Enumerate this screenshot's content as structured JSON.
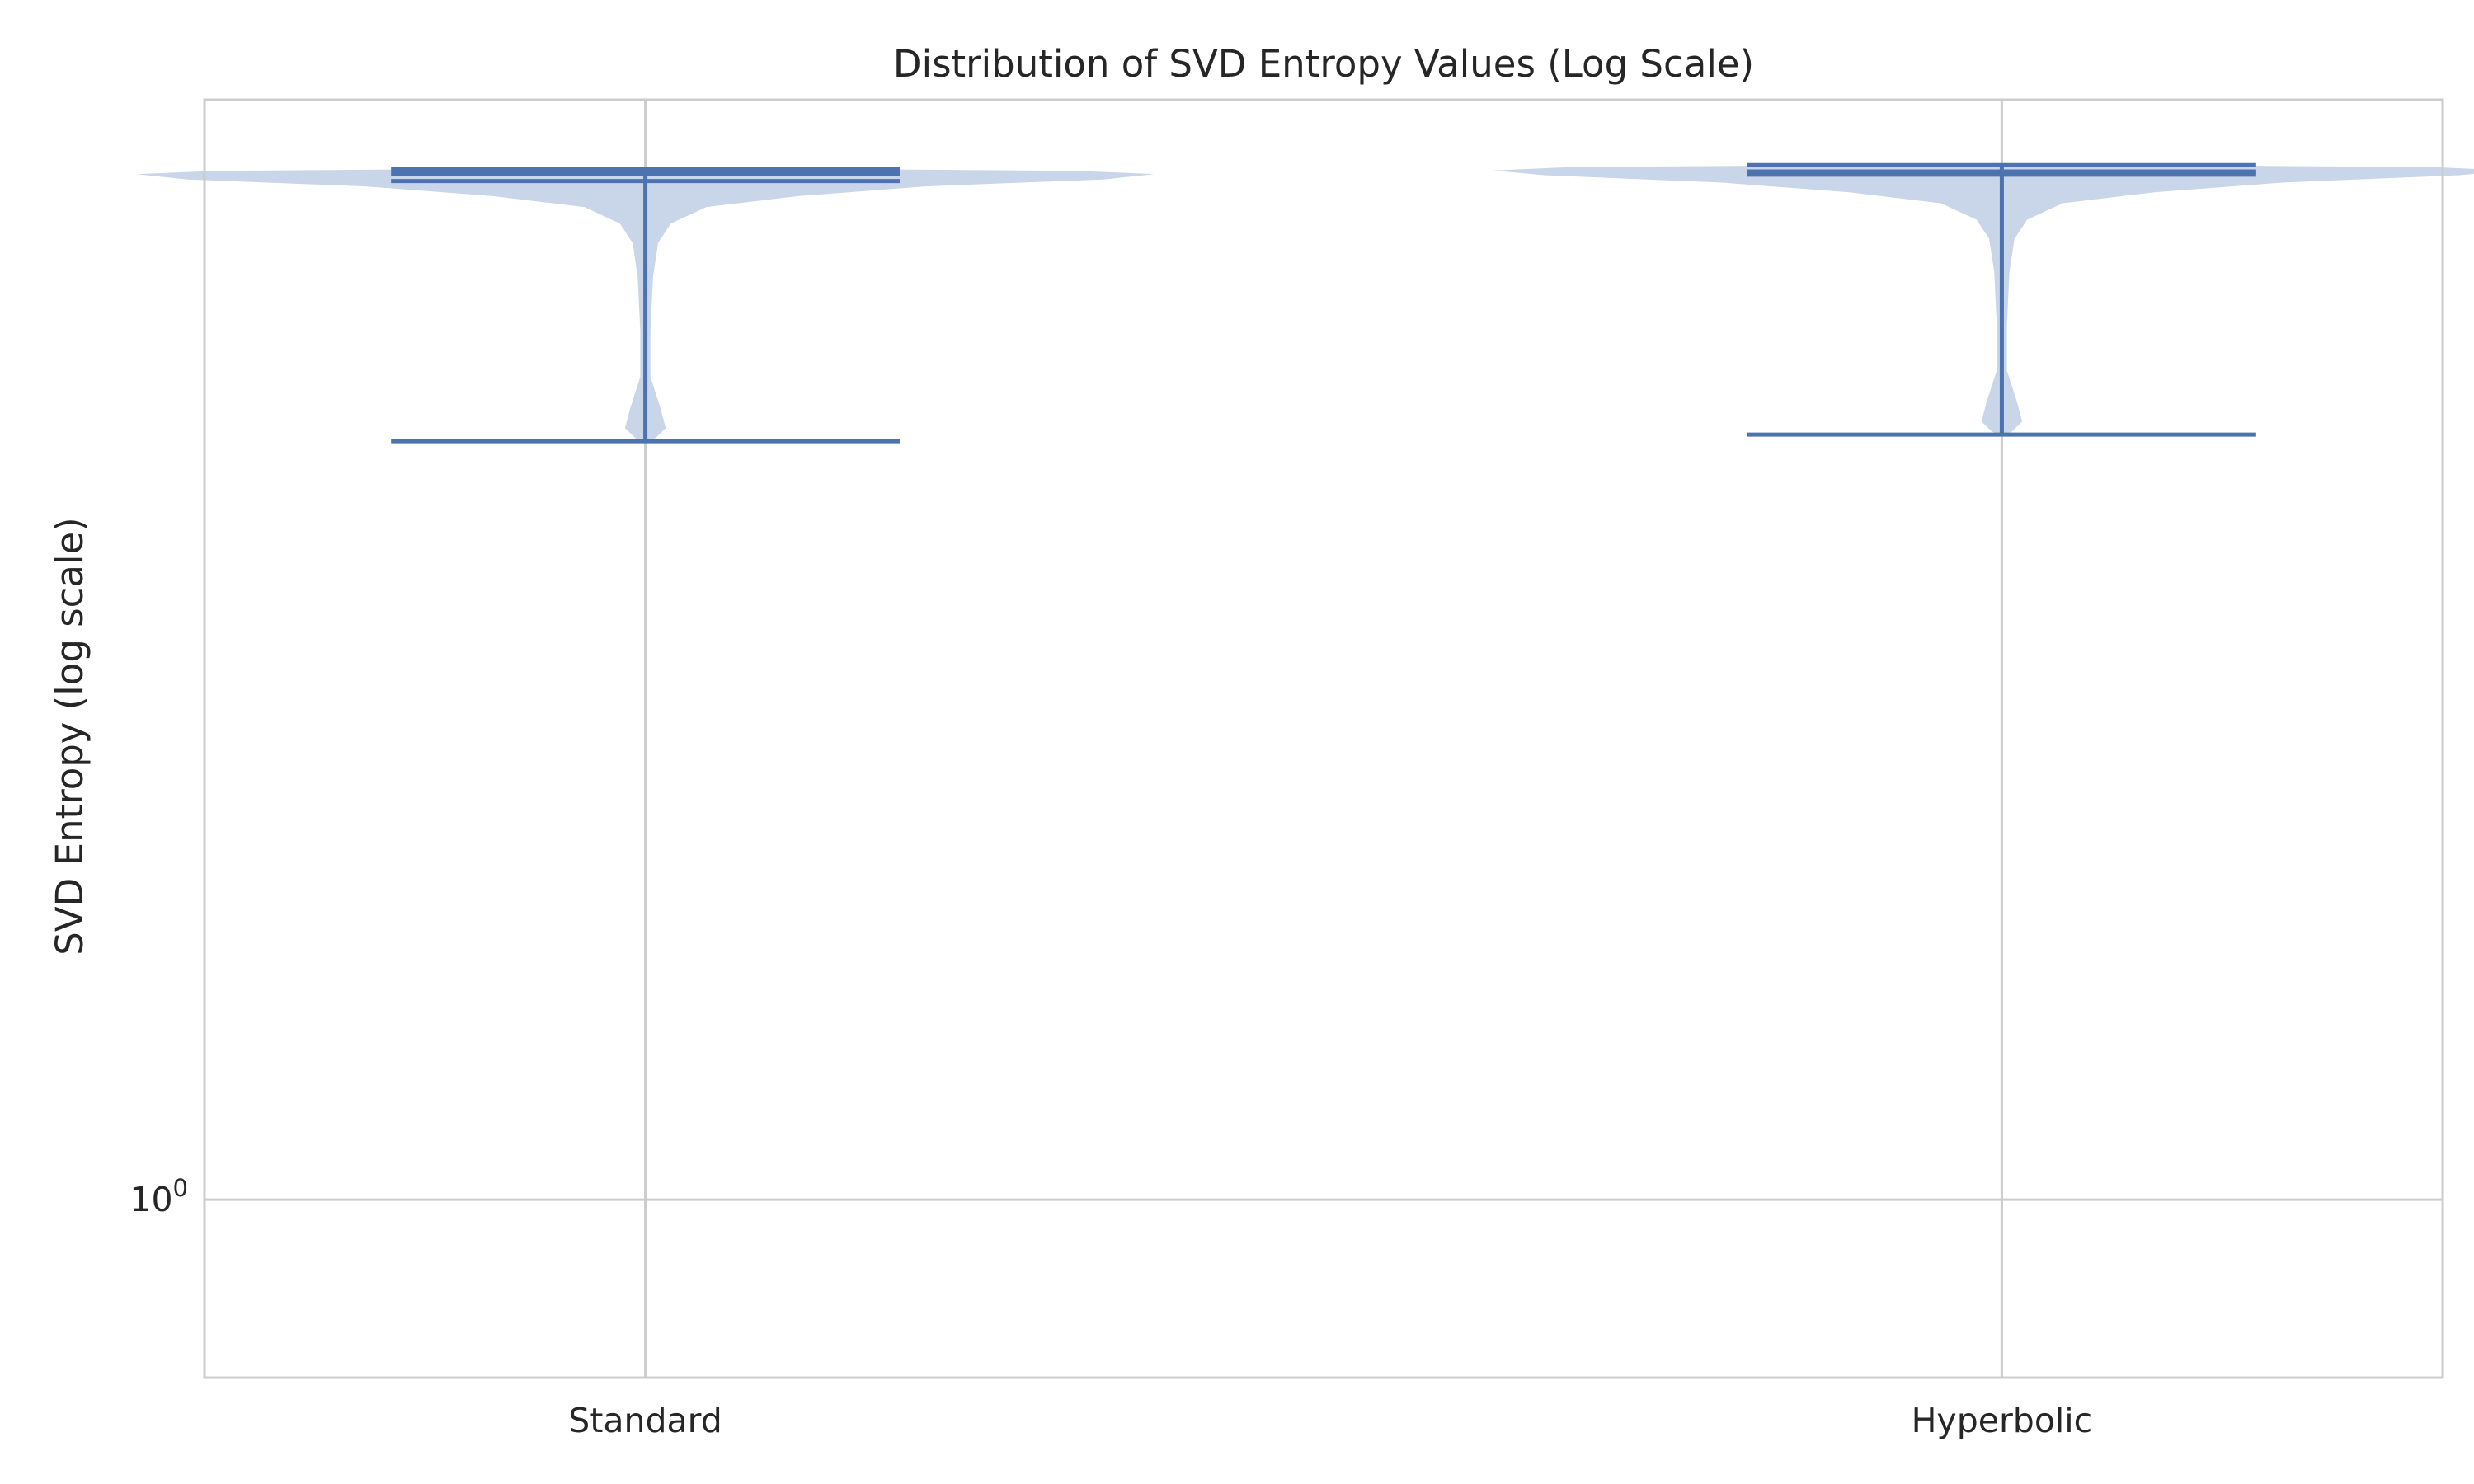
{
  "chart_data": {
    "type": "violin",
    "title": "Distribution of SVD Entropy Values (Log Scale)",
    "xlabel": "",
    "ylabel": "SVD Entropy (log scale)",
    "yscale": "log",
    "ylim": [
      0.865,
      2.45
    ],
    "yticks": [
      {
        "value": 1,
        "base": "10",
        "exponent": "0"
      }
    ],
    "categories": [
      "Standard",
      "Hyperbolic"
    ],
    "grid": true,
    "colors": {
      "body": "#c9d5e8",
      "lines": "#4c72b0",
      "grid": "#cccccc",
      "frame": "#cccccc",
      "text": "#262626"
    },
    "violins": [
      {
        "category": "Standard",
        "min": 1.855,
        "max": 2.316,
        "mean": 2.307,
        "median": 2.293,
        "density": [
          [
            2.316,
            0.3
          ],
          [
            2.312,
            0.85
          ],
          [
            2.306,
            1.0
          ],
          [
            2.296,
            0.9
          ],
          [
            2.283,
            0.55
          ],
          [
            2.265,
            0.3
          ],
          [
            2.245,
            0.12
          ],
          [
            2.215,
            0.05
          ],
          [
            2.18,
            0.025
          ],
          [
            2.12,
            0.015
          ],
          [
            2.03,
            0.01
          ],
          [
            1.955,
            0.01
          ],
          [
            1.905,
            0.03
          ],
          [
            1.875,
            0.04
          ],
          [
            1.86,
            0.02
          ],
          [
            1.855,
            0.005
          ]
        ]
      },
      {
        "category": "Hyperbolic",
        "min": 1.865,
        "max": 2.323,
        "mean": 2.311,
        "median": 2.305,
        "density": [
          [
            2.323,
            0.3
          ],
          [
            2.319,
            0.85
          ],
          [
            2.313,
            1.0
          ],
          [
            2.304,
            0.9
          ],
          [
            2.29,
            0.55
          ],
          [
            2.272,
            0.3
          ],
          [
            2.252,
            0.12
          ],
          [
            2.222,
            0.05
          ],
          [
            2.188,
            0.025
          ],
          [
            2.13,
            0.015
          ],
          [
            2.04,
            0.01
          ],
          [
            1.965,
            0.01
          ],
          [
            1.915,
            0.03
          ],
          [
            1.885,
            0.04
          ],
          [
            1.87,
            0.02
          ],
          [
            1.865,
            0.005
          ]
        ]
      }
    ]
  }
}
